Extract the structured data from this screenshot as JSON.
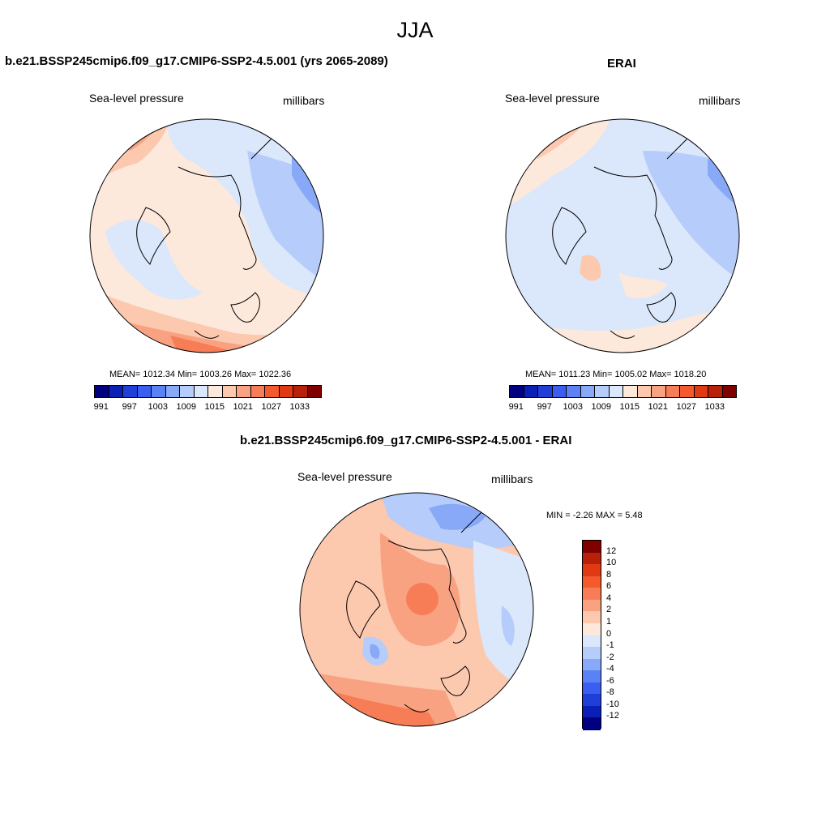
{
  "main_title": "JJA",
  "panels": [
    {
      "title": "b.e21.BSSP245cmip6.f09_g17.CMIP6-SSP2-4.5.001 (yrs 2065-2089)",
      "variable": "Sea-level pressure",
      "units": "millibars",
      "stats": "MEAN= 1012.34  Min= 1003.26  Max= 1022.36"
    },
    {
      "title": "ERAI",
      "variable": "Sea-level pressure",
      "units": "millibars",
      "stats": "MEAN= 1011.23  Min= 1005.02  Max= 1018.20"
    },
    {
      "title": "b.e21.BSSP245cmip6.f09_g17.CMIP6-SSP2-4.5.001 - ERAI",
      "variable": "Sea-level pressure",
      "units": "millibars",
      "stats": "MIN =  -2.26 MAX =   5.48"
    }
  ],
  "abs_colorbar": {
    "colors": [
      "#000080",
      "#0a1fb5",
      "#1f3fd8",
      "#3a5ff0",
      "#5a82f5",
      "#88a8f8",
      "#b6ccfa",
      "#dbe7fb",
      "#fde9dc",
      "#fcc8ae",
      "#f9a282",
      "#f77d56",
      "#f45a2e",
      "#e03a12",
      "#b8200a",
      "#800000"
    ],
    "labels": [
      "991",
      "997",
      "1003",
      "1009",
      "1015",
      "1021",
      "1027",
      "1033"
    ]
  },
  "diff_colorbar": {
    "colors": [
      "#000080",
      "#0a1fb5",
      "#1f3fd8",
      "#3a5ff0",
      "#5a82f5",
      "#88a8f8",
      "#b6ccfa",
      "#dbe7fb",
      "#fde9dc",
      "#fcc8ae",
      "#f9a282",
      "#f77d56",
      "#f45a2e",
      "#e03a12",
      "#b8200a",
      "#800000"
    ],
    "labels": [
      "-12",
      "-10",
      "-8",
      "-6",
      "-4",
      "-2",
      "-1",
      "0",
      "1",
      "2",
      "4",
      "6",
      "8",
      "10",
      "12"
    ]
  }
}
